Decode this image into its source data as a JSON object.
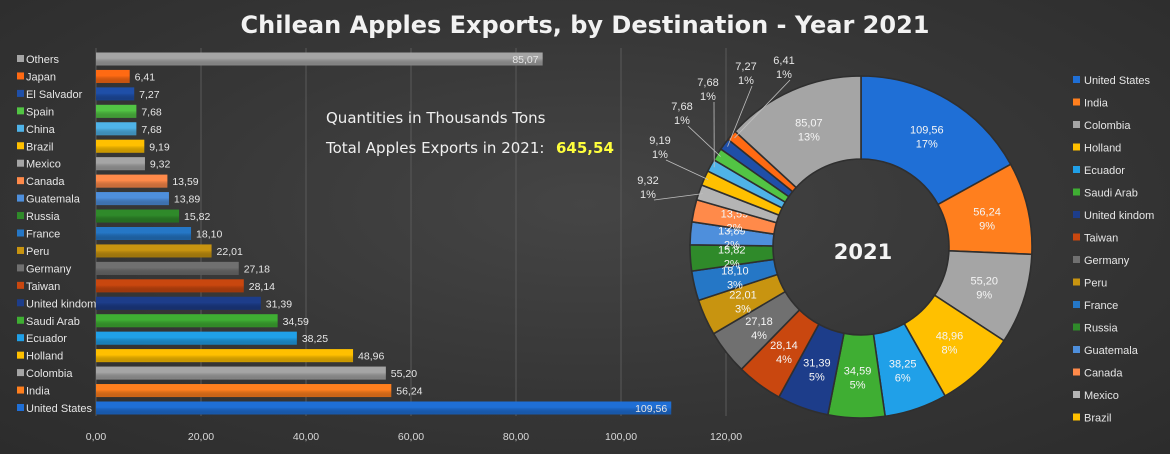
{
  "chart_data": [
    {
      "type": "bar",
      "orientation": "horizontal",
      "title": "Chilean Apples Exports, by Destination - Year 2021",
      "xlim": [
        0,
        120
      ],
      "xticks": [
        "0,00",
        "20,00",
        "40,00",
        "60,00",
        "80,00",
        "100,00",
        "120,00"
      ],
      "grid": true,
      "categories": [
        "Others",
        "Japan",
        "El Salvador",
        "Spain",
        "China",
        "Brazil",
        "Mexico",
        "Canada",
        "Guatemala",
        "Russia",
        "France",
        "Peru",
        "Germany",
        "Taiwan",
        "United kindom",
        "Saudi Arab",
        "Ecuador",
        "Holland",
        "Colombia",
        "India",
        "United States"
      ],
      "values": [
        85.07,
        6.41,
        7.27,
        7.68,
        7.68,
        9.19,
        9.32,
        13.59,
        13.89,
        15.82,
        18.1,
        22.01,
        27.18,
        28.14,
        31.39,
        34.59,
        38.25,
        48.96,
        55.2,
        56.24,
        109.56
      ],
      "value_labels": [
        "85,07",
        "6,41",
        "7,27",
        "7,68",
        "7,68",
        "9,19",
        "9,32",
        "13,59",
        "13,89",
        "15,82",
        "18,10",
        "22,01",
        "27,18",
        "28,14",
        "31,39",
        "34,59",
        "38,25",
        "48,96",
        "55,20",
        "56,24",
        "109,56"
      ],
      "colors": [
        "#a5a5a5",
        "#ff6a13",
        "#1f4fa8",
        "#52c444",
        "#4fb3e8",
        "#ffc000",
        "#a5a5a5",
        "#ff8a4a",
        "#4e8fdc",
        "#2f8a2a",
        "#2577c6",
        "#c89410",
        "#707070",
        "#c9470f",
        "#1d3d8a",
        "#3fae33",
        "#20a0e8",
        "#ffc000",
        "#a5a5a5",
        "#ff7f1e",
        "#1f6fd6"
      ]
    },
    {
      "type": "pie",
      "donut": true,
      "center_label": "2021",
      "slices": [
        {
          "name": "United States",
          "value": 109.56,
          "label": "109,56",
          "pct": "17%",
          "color": "#1f6fd6"
        },
        {
          "name": "India",
          "value": 56.24,
          "label": "56,24",
          "pct": "9%",
          "color": "#ff7f1e"
        },
        {
          "name": "Colombia",
          "value": 55.2,
          "label": "55,20",
          "pct": "9%",
          "color": "#a5a5a5"
        },
        {
          "name": "Holland",
          "value": 48.96,
          "label": "48,96",
          "pct": "8%",
          "color": "#ffc000"
        },
        {
          "name": "Ecuador",
          "value": 38.25,
          "label": "38,25",
          "pct": "6%",
          "color": "#20a0e8"
        },
        {
          "name": "Saudi Arab",
          "value": 34.59,
          "label": "34,59",
          "pct": "5%",
          "color": "#3fae33"
        },
        {
          "name": "United kindom",
          "value": 31.39,
          "label": "31,39",
          "pct": "5%",
          "color": "#1d3d8a"
        },
        {
          "name": "Taiwan",
          "value": 28.14,
          "label": "28,14",
          "pct": "4%",
          "color": "#c9470f"
        },
        {
          "name": "Germany",
          "value": 27.18,
          "label": "27,18",
          "pct": "4%",
          "color": "#707070"
        },
        {
          "name": "Peru",
          "value": 22.01,
          "label": "22,01",
          "pct": "3%",
          "color": "#c89410"
        },
        {
          "name": "France",
          "value": 18.1,
          "label": "18,10",
          "pct": "3%",
          "color": "#2577c6"
        },
        {
          "name": "Russia",
          "value": 15.82,
          "label": "15,82",
          "pct": "2%",
          "color": "#2f8a2a"
        },
        {
          "name": "Guatemala",
          "value": 13.89,
          "label": "13,89",
          "pct": "2%",
          "color": "#4e8fdc"
        },
        {
          "name": "Canada",
          "value": 13.59,
          "label": "13,59",
          "pct": "2%",
          "color": "#ff8a4a"
        },
        {
          "name": "Mexico",
          "value": 9.32,
          "label": "9,32",
          "pct": "1%",
          "color": "#b4b4b4"
        },
        {
          "name": "Brazil",
          "value": 9.19,
          "label": "9,19",
          "pct": "1%",
          "color": "#ffc000"
        },
        {
          "name": "China",
          "value": 7.68,
          "label": "7,68",
          "pct": "1%",
          "color": "#4fb3e8"
        },
        {
          "name": "Spain",
          "value": 7.68,
          "label": "7,68",
          "pct": "1%",
          "color": "#52c444"
        },
        {
          "name": "El Salvador",
          "value": 7.27,
          "label": "7,27",
          "pct": "1%",
          "color": "#1f4fa8"
        },
        {
          "name": "Japan",
          "value": 6.41,
          "label": "6,41",
          "pct": "1%",
          "color": "#ff6a13"
        },
        {
          "name": "Others",
          "value": 85.07,
          "label": "85,07",
          "pct": "13%",
          "color": "#a5a5a5"
        }
      ],
      "legend_placement": "right",
      "legend": [
        "United States",
        "India",
        "Colombia",
        "Holland",
        "Ecuador",
        "Saudi Arab",
        "United kindom",
        "Taiwan",
        "Germany",
        "Peru",
        "France",
        "Russia",
        "Guatemala",
        "Canada",
        "Mexico",
        "Brazil"
      ]
    }
  ],
  "annotations": {
    "units": "Quantities in Thousands Tons",
    "total_prefix": "Total Apples Exports in 2021:",
    "total_value": "645,54",
    "highlight_color": "#ffff3c"
  }
}
